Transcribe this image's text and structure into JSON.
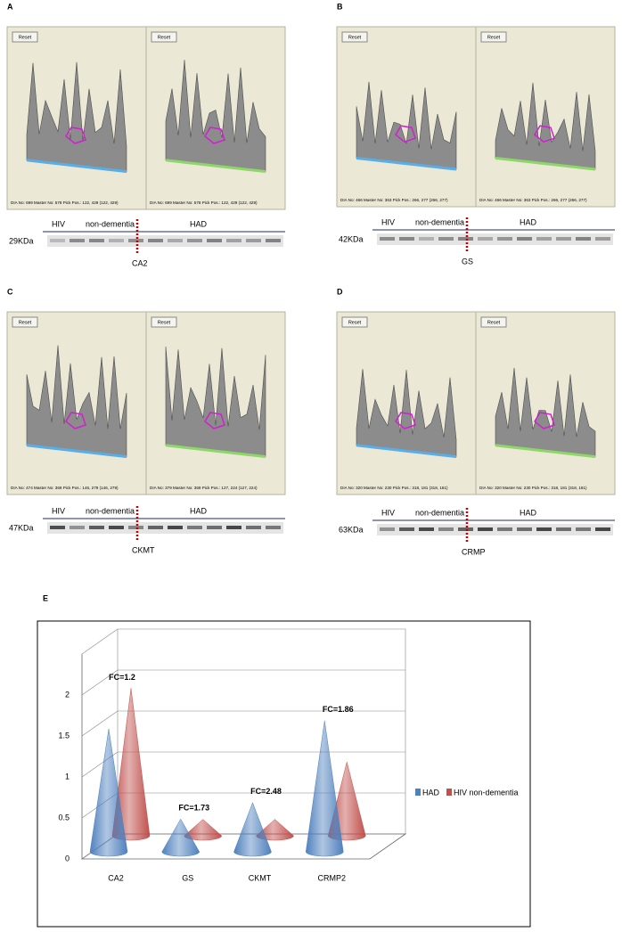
{
  "panels": [
    {
      "label": "A",
      "views": [
        {
          "button": "Reset",
          "footer": "DIA No: 699 Master No: 578 Pick Pos.: 122, 429 (122, 429)"
        },
        {
          "button": "Reset",
          "footer": "DIA No: 699 Master No: 578 Pick Pos.: 122, 429 (122, 429)"
        }
      ],
      "blot": {
        "groups": [
          "HIV",
          "non-dementia",
          "HAD"
        ],
        "size": "29KDa",
        "protein": "CA2"
      }
    },
    {
      "label": "B",
      "views": [
        {
          "button": "Reset",
          "footer": "DIA No: 466 Master No: 363 Pick Pos.: 266, 277 (266, 277)"
        },
        {
          "button": "Reset",
          "footer": "DIA No: 466 Master No: 363 Pick Pos.: 266, 277 (266, 277)"
        }
      ],
      "blot": {
        "groups": [
          "HIV",
          "non-dementia",
          "HAD"
        ],
        "size": "42KDa",
        "protein": "GS"
      }
    },
    {
      "label": "C",
      "views": [
        {
          "button": "Reset",
          "footer": "DIA No: 474 Master No: 369 Pick Pos.: 146, 279 (146, 279)"
        },
        {
          "button": "Reset",
          "footer": "DIA No: 379 Master No: 369 Pick Pos.: 127, 224 (127, 224)"
        }
      ],
      "blot": {
        "groups": [
          "HIV",
          "non-dementia",
          "HAD"
        ],
        "size": "47KDa",
        "protein": "CKMT"
      }
    },
    {
      "label": "D",
      "views": [
        {
          "button": "Reset",
          "footer": "DIA No: 320 Master No: 230 Pick Pos.: 318, 181 (318, 181)"
        },
        {
          "button": "Reset",
          "footer": "DIA No: 320 Master No: 230 Pick Pos.: 318, 181 (318, 181)"
        }
      ],
      "blot": {
        "groups": [
          "HIV",
          "non-dementia",
          "HAD"
        ],
        "size": "63KDa",
        "protein": "CRMP"
      }
    }
  ],
  "chart_data": {
    "type": "cone",
    "label": "E",
    "categories": [
      "CA2",
      "GS",
      "CKMT",
      "CRMP2"
    ],
    "series": [
      {
        "name": "HAD",
        "color": "#4f81bd",
        "values": [
          1.5,
          0.4,
          0.6,
          1.6
        ]
      },
      {
        "name": "HIV non-dementia",
        "color": "#c0504d",
        "values": [
          1.8,
          0.2,
          0.2,
          0.9
        ]
      }
    ],
    "annotations": [
      "FC=1.2",
      "FC=1.73",
      "FC=2.48",
      "FC=1.86"
    ],
    "ylim": [
      0,
      2.5
    ],
    "yticks": [
      0,
      0.5,
      1,
      1.5,
      2
    ],
    "grid": true,
    "legend": "right"
  }
}
